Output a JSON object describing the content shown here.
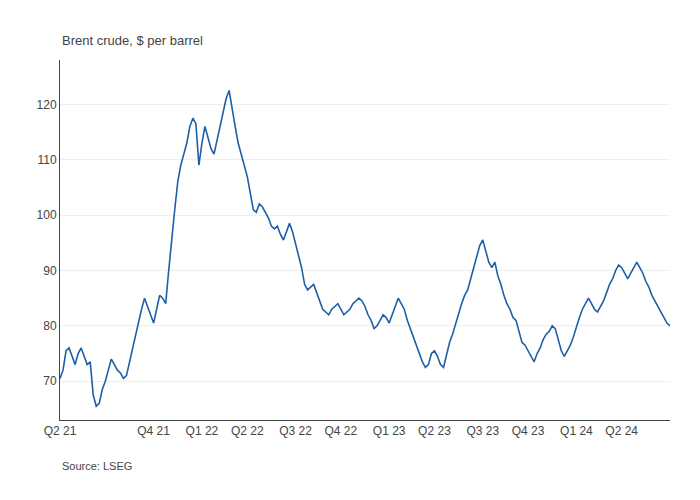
{
  "chart_data": {
    "type": "line",
    "ylabel": "Brent crude, $ per barrel",
    "annotations": [
      "Source: LSEG"
    ],
    "color": "#1f5fa6",
    "grid": "y",
    "ylim": [
      63,
      128
    ],
    "yticks": [
      70,
      80,
      90,
      100,
      110,
      120
    ],
    "categories": [
      "Q2 21",
      null,
      null,
      null,
      null,
      null,
      null,
      null,
      null,
      null,
      null,
      null,
      null,
      null,
      null,
      null,
      null,
      null,
      null,
      null,
      null,
      null,
      null,
      null,
      null,
      null,
      null,
      null,
      null,
      null,
      null,
      "Q4 21",
      null,
      null,
      null,
      null,
      null,
      null,
      null,
      null,
      null,
      null,
      null,
      null,
      null,
      null,
      null,
      "Q1 22",
      null,
      null,
      null,
      null,
      null,
      null,
      null,
      null,
      null,
      null,
      null,
      null,
      null,
      null,
      "Q2 22",
      null,
      null,
      null,
      null,
      null,
      null,
      null,
      null,
      null,
      null,
      null,
      null,
      null,
      null,
      null,
      "Q3 22",
      null,
      null,
      null,
      null,
      null,
      null,
      null,
      null,
      null,
      null,
      null,
      null,
      null,
      null,
      "Q4 22",
      null,
      null,
      null,
      null,
      null,
      null,
      null,
      null,
      null,
      null,
      null,
      null,
      null,
      null,
      null,
      "Q1 23",
      null,
      null,
      null,
      null,
      null,
      null,
      null,
      null,
      null,
      null,
      null,
      null,
      null,
      null,
      "Q2 23",
      null,
      null,
      null,
      null,
      null,
      null,
      null,
      null,
      null,
      null,
      null,
      null,
      null,
      null,
      null,
      "Q3 23",
      null,
      null,
      null,
      null,
      null,
      null,
      null,
      null,
      null,
      null,
      null,
      null,
      null,
      null,
      "Q4 23",
      null,
      null,
      null,
      null,
      null,
      null,
      null,
      null,
      null,
      null,
      null,
      null,
      null,
      null,
      null,
      "Q1 24",
      null,
      null,
      null,
      null,
      null,
      null,
      null,
      null,
      null,
      null,
      null,
      null,
      null,
      null,
      "Q2 24",
      null,
      null,
      null,
      null,
      null,
      null,
      null,
      null,
      null,
      null,
      null,
      null,
      null,
      null,
      null,
      null
    ],
    "values": [
      70.5,
      72.0,
      75.5,
      76.0,
      74.5,
      73.0,
      75.0,
      76.0,
      74.5,
      73.0,
      73.5,
      67.5,
      65.5,
      66.0,
      68.5,
      70.0,
      72.0,
      74.0,
      73.0,
      72.0,
      71.5,
      70.5,
      71.0,
      73.5,
      76.0,
      78.5,
      81.0,
      83.0,
      85.0,
      83.5,
      82.0,
      80.5,
      83.0,
      85.5,
      85.0,
      84.0,
      90.0,
      96.0,
      101.0,
      106.0,
      109.0,
      111.0,
      113.0,
      116.0,
      117.5,
      116.5,
      109.0,
      113.0,
      116.0,
      114.0,
      112.0,
      111.0,
      113.5,
      116.0,
      119.0,
      121.0,
      122.5,
      119.0,
      116.0,
      113.0,
      111.0,
      109.0,
      107.0,
      104.0,
      101.0,
      100.5,
      102.0,
      101.5,
      100.5,
      99.5,
      98.0,
      97.5,
      98.0,
      96.5,
      95.5,
      97.0,
      98.5,
      97.0,
      95.0,
      93.0,
      90.5,
      87.5,
      86.5,
      87.0,
      87.5,
      86.0,
      84.5,
      83.0,
      82.5,
      82.0,
      83.0,
      83.5,
      84.0,
      83.0,
      82.0,
      82.5,
      83.0,
      84.0,
      84.5,
      85.0,
      84.5,
      83.5,
      82.0,
      81.0,
      79.5,
      80.0,
      81.0,
      82.0,
      81.5,
      80.5,
      82.0,
      83.5,
      85.0,
      84.0,
      83.0,
      81.0,
      79.5,
      78.0,
      76.5,
      75.0,
      73.5,
      72.5,
      73.0,
      75.0,
      75.5,
      74.5,
      73.0,
      72.5,
      75.0,
      77.0,
      78.5,
      80.5,
      82.0,
      84.0,
      85.5,
      86.5,
      88.5,
      90.5,
      92.5,
      94.5,
      95.5,
      93.5,
      91.5,
      90.5,
      91.5,
      89.0,
      87.5,
      85.5,
      84.0,
      83.0,
      81.5,
      81.0,
      79.0,
      77.0,
      76.5,
      75.5,
      74.5,
      73.5,
      75.0,
      76.0,
      77.5,
      78.5,
      79.0,
      80.0,
      79.5,
      77.5,
      75.5,
      74.5,
      75.5,
      76.5,
      78.0,
      80.0,
      81.5,
      83.0,
      84.0,
      85.0,
      84.0,
      83.0,
      82.5,
      83.5,
      84.5,
      86.0,
      87.5,
      88.5,
      90.0,
      91.0,
      90.5,
      89.5,
      88.5,
      89.5,
      90.5,
      91.5,
      90.5,
      89.5,
      88.0,
      87.0,
      85.5,
      84.5,
      83.5,
      82.5,
      81.5,
      80.5,
      80.0
    ]
  }
}
